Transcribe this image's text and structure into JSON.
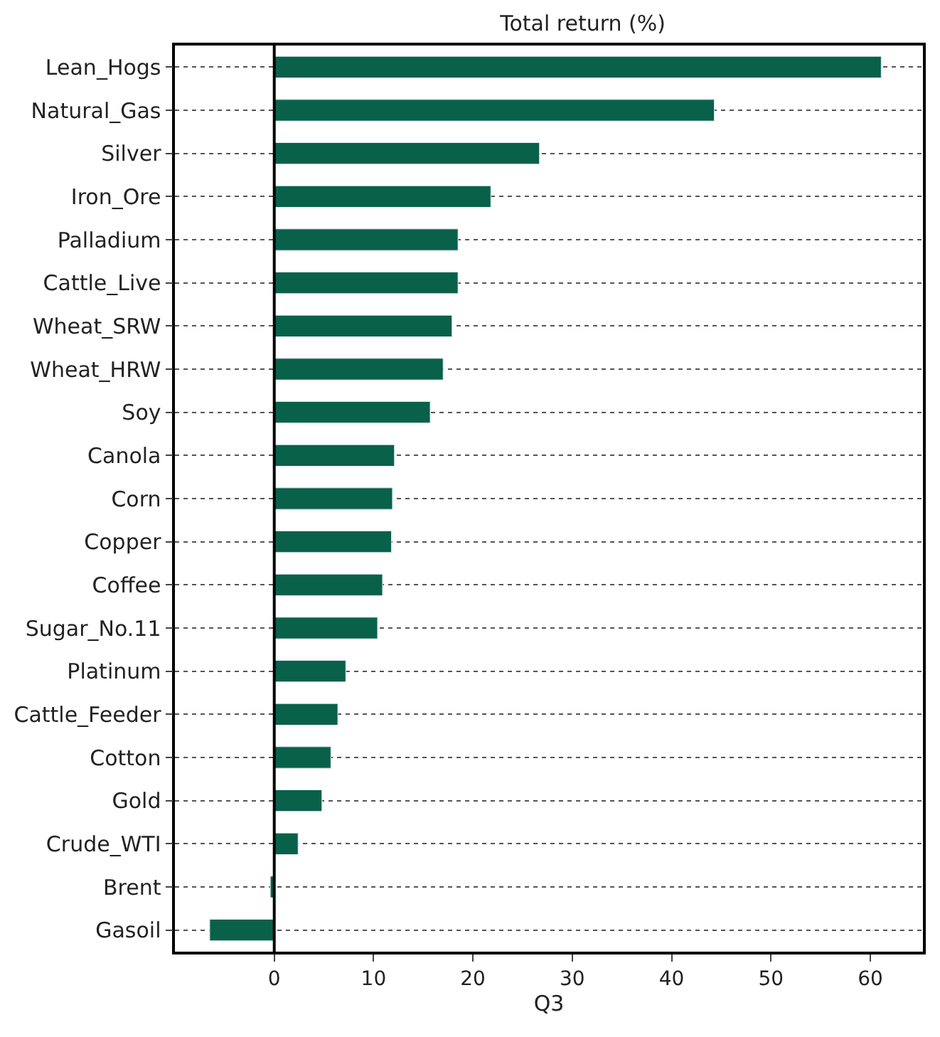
{
  "chart_data": {
    "type": "bar",
    "orientation": "horizontal",
    "title": "Total return (%)",
    "xlabel": "Q3",
    "categories": [
      "Lean_Hogs",
      "Natural_Gas",
      "Silver",
      "Iron_Ore",
      "Palladium",
      "Cattle_Live",
      "Wheat_SRW",
      "Wheat_HRW",
      "Soy",
      "Canola",
      "Corn",
      "Copper",
      "Coffee",
      "Sugar_No.11",
      "Platinum",
      "Cattle_Feeder",
      "Cotton",
      "Gold",
      "Crude_WTI",
      "Brent",
      "Gasoil"
    ],
    "values": [
      61.1,
      44.3,
      26.7,
      21.8,
      18.5,
      18.5,
      17.9,
      17.0,
      15.7,
      12.1,
      11.9,
      11.8,
      10.9,
      10.4,
      7.2,
      6.4,
      5.7,
      4.8,
      2.4,
      -0.4,
      -6.5
    ],
    "color": "#09614a",
    "xlim": [
      -10,
      65.3
    ],
    "xticks": [
      0,
      10,
      20,
      30,
      40,
      50,
      60
    ],
    "ref_lines": [
      {
        "axis": "x",
        "value": 0,
        "color": "#000000",
        "line_style": "solid"
      }
    ],
    "grid": "y"
  }
}
